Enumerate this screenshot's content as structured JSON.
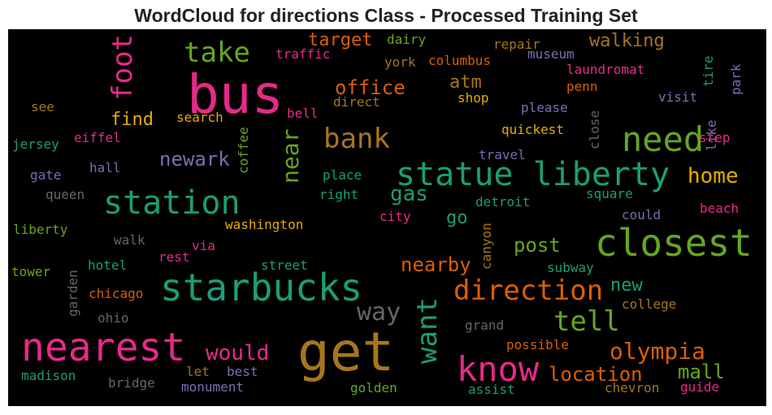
{
  "chart_data": {
    "type": "wordcloud",
    "title": "WordCloud for directions Class - Processed Training Set",
    "background": "#000000",
    "words": [
      {
        "text": "bus",
        "color": "#e7298a"
      },
      {
        "text": "get",
        "color": "#a6761d"
      },
      {
        "text": "statue liberty",
        "color": "#1b9e77"
      },
      {
        "text": "closest",
        "color": "#66a61e"
      },
      {
        "text": "starbucks",
        "color": "#1b9e77"
      },
      {
        "text": "nearest",
        "color": "#e7298a"
      },
      {
        "text": "station",
        "color": "#1b9e77"
      },
      {
        "text": "know",
        "color": "#e7298a"
      },
      {
        "text": "need",
        "color": "#66a61e"
      },
      {
        "text": "direction",
        "color": "#d95f02"
      },
      {
        "text": "bank",
        "color": "#a6761d"
      },
      {
        "text": "foot",
        "color": "#e7298a"
      },
      {
        "text": "want",
        "color": "#1b9e77"
      },
      {
        "text": "take",
        "color": "#66a61e"
      },
      {
        "text": "tell",
        "color": "#66a61e"
      },
      {
        "text": "way",
        "color": "#666666"
      },
      {
        "text": "near",
        "color": "#66a61e"
      },
      {
        "text": "olympia",
        "color": "#d95f02"
      },
      {
        "text": "home",
        "color": "#e6ab02"
      },
      {
        "text": "would",
        "color": "#e7298a"
      },
      {
        "text": "location",
        "color": "#d95f02"
      },
      {
        "text": "office",
        "color": "#d95f02"
      },
      {
        "text": "gas",
        "color": "#1b9e77"
      },
      {
        "text": "post",
        "color": "#66a61e"
      },
      {
        "text": "nearby",
        "color": "#d95f02"
      },
      {
        "text": "newark",
        "color": "#7570b3"
      },
      {
        "text": "mall",
        "color": "#66a61e"
      },
      {
        "text": "walking",
        "color": "#a6761d"
      },
      {
        "text": "target",
        "color": "#d95f02"
      },
      {
        "text": "find",
        "color": "#e6ab02"
      },
      {
        "text": "atm",
        "color": "#a6761d"
      },
      {
        "text": "new",
        "color": "#1b9e77"
      },
      {
        "text": "go",
        "color": "#1b9e77"
      },
      {
        "text": "dairy",
        "color": "#66a61e"
      },
      {
        "text": "repair",
        "color": "#a6761d"
      },
      {
        "text": "traffic",
        "color": "#e7298a"
      },
      {
        "text": "york",
        "color": "#a6761d"
      },
      {
        "text": "columbus",
        "color": "#d95f02"
      },
      {
        "text": "museum",
        "color": "#7570b3"
      },
      {
        "text": "laundromat",
        "color": "#e7298a"
      },
      {
        "text": "penn",
        "color": "#d95f02"
      },
      {
        "text": "tire",
        "color": "#1b9e77"
      },
      {
        "text": "park",
        "color": "#7570b3"
      },
      {
        "text": "see",
        "color": "#a6761d"
      },
      {
        "text": "bell",
        "color": "#e7298a"
      },
      {
        "text": "direct",
        "color": "#a6761d"
      },
      {
        "text": "shop",
        "color": "#e6ab02"
      },
      {
        "text": "please",
        "color": "#7570b3"
      },
      {
        "text": "visit",
        "color": "#7570b3"
      },
      {
        "text": "search",
        "color": "#e6ab02"
      },
      {
        "text": "close",
        "color": "#666666"
      },
      {
        "text": "like",
        "color": "#7570b3"
      },
      {
        "text": "jersey",
        "color": "#1b9e77"
      },
      {
        "text": "eiffel",
        "color": "#e7298a"
      },
      {
        "text": "coffee",
        "color": "#66a61e"
      },
      {
        "text": "quickest",
        "color": "#e6ab02"
      },
      {
        "text": "step",
        "color": "#e7298a"
      },
      {
        "text": "travel",
        "color": "#7570b3"
      },
      {
        "text": "gate",
        "color": "#7570b3"
      },
      {
        "text": "hall",
        "color": "#7570b3"
      },
      {
        "text": "place",
        "color": "#1b9e77"
      },
      {
        "text": "queen",
        "color": "#666666"
      },
      {
        "text": "right",
        "color": "#1b9e77"
      },
      {
        "text": "detroit",
        "color": "#1b9e77"
      },
      {
        "text": "square",
        "color": "#1b9e77"
      },
      {
        "text": "city",
        "color": "#e7298a"
      },
      {
        "text": "beach",
        "color": "#e7298a"
      },
      {
        "text": "could",
        "color": "#7570b3"
      },
      {
        "text": "liberty",
        "color": "#66a61e"
      },
      {
        "text": "washington",
        "color": "#e6ab02"
      },
      {
        "text": "walk",
        "color": "#666666"
      },
      {
        "text": "via",
        "color": "#e7298a"
      },
      {
        "text": "canyon",
        "color": "#a6761d"
      },
      {
        "text": "tower",
        "color": "#66a61e"
      },
      {
        "text": "rest",
        "color": "#e7298a"
      },
      {
        "text": "hotel",
        "color": "#1b9e77"
      },
      {
        "text": "street",
        "color": "#1b9e77"
      },
      {
        "text": "subway",
        "color": "#1b9e77"
      },
      {
        "text": "garden",
        "color": "#666666"
      },
      {
        "text": "chicago",
        "color": "#d95f02"
      },
      {
        "text": "college",
        "color": "#a6761d"
      },
      {
        "text": "ohio",
        "color": "#666666"
      },
      {
        "text": "grand",
        "color": "#666666"
      },
      {
        "text": "possible",
        "color": "#d95f02"
      },
      {
        "text": "madison",
        "color": "#1b9e77"
      },
      {
        "text": "bridge",
        "color": "#666666"
      },
      {
        "text": "let",
        "color": "#a6761d"
      },
      {
        "text": "best",
        "color": "#7570b3"
      },
      {
        "text": "golden",
        "color": "#66a61e"
      },
      {
        "text": "monument",
        "color": "#7570b3"
      },
      {
        "text": "assist",
        "color": "#1b9e77"
      },
      {
        "text": "chevron",
        "color": "#a6761d"
      },
      {
        "text": "guide",
        "color": "#e7298a"
      }
    ]
  }
}
